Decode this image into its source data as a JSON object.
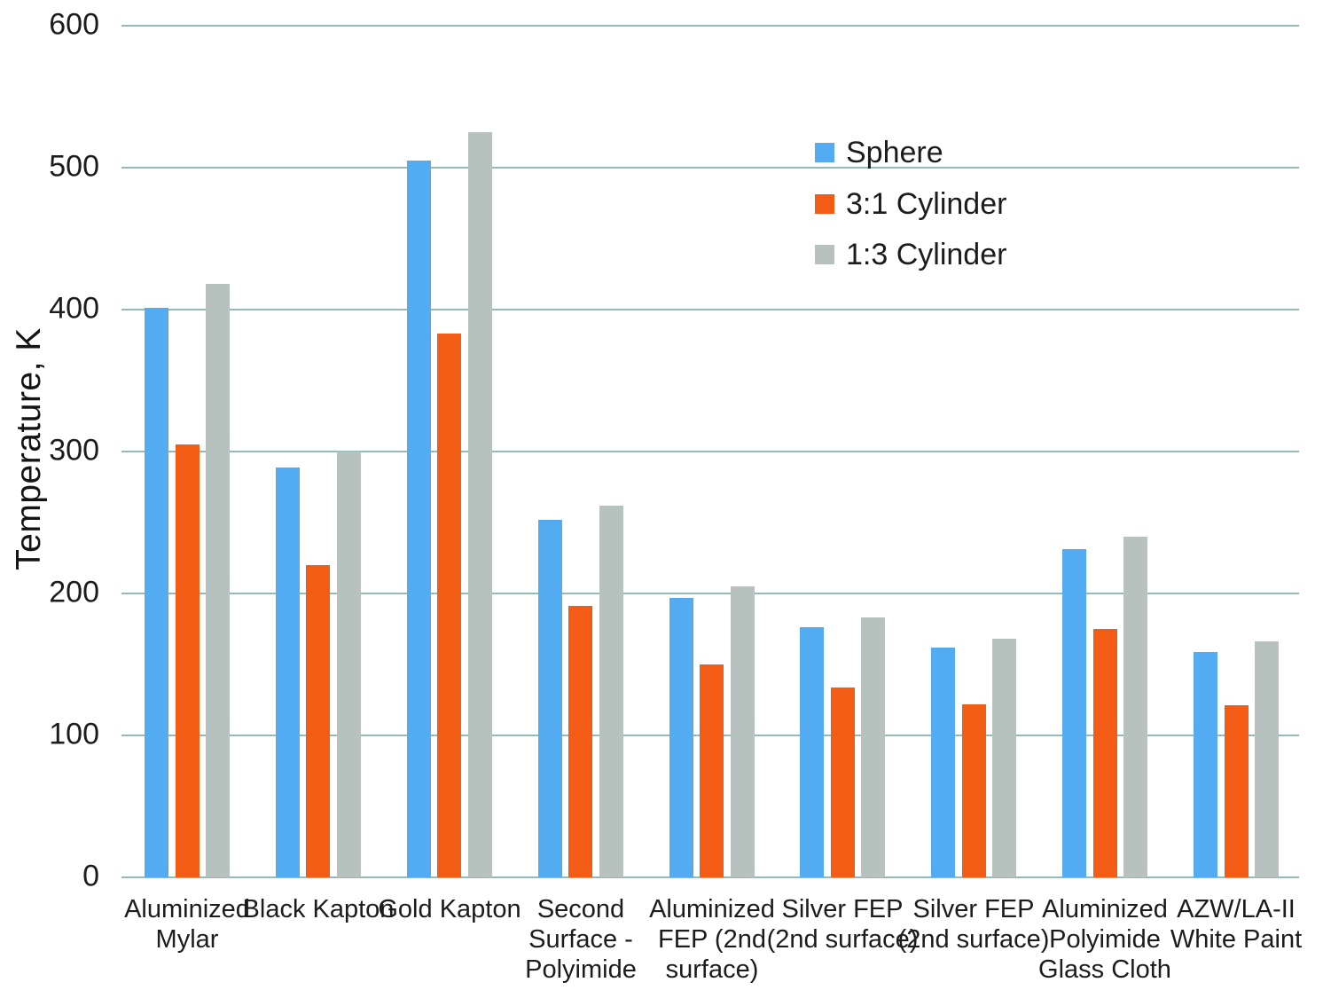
{
  "chart_data": {
    "type": "bar",
    "title": "",
    "xlabel": "",
    "ylabel": "Temperature, K",
    "ylim": [
      0,
      600
    ],
    "y_tick_step": 100,
    "y_tick_labels": [
      "0",
      "100",
      "200",
      "300",
      "400",
      "500",
      "600"
    ],
    "grid": "horizontal",
    "legend_position": "inside-top, right of center",
    "categories": [
      {
        "label": "Aluminized Mylar",
        "lines": [
          "Aluminized",
          "Mylar"
        ]
      },
      {
        "label": "Black Kapton",
        "lines": [
          "Black Kapton"
        ]
      },
      {
        "label": "Gold Kapton",
        "lines": [
          "Gold Kapton"
        ]
      },
      {
        "label": "Second Surface - Polyimide",
        "lines": [
          "Second",
          "Surface -",
          "Polyimide"
        ]
      },
      {
        "label": "Aluminized FEP (2nd surface)",
        "lines": [
          "Aluminized",
          "FEP (2nd",
          "surface)"
        ]
      },
      {
        "label": "Silver FEP (2nd surface)",
        "lines": [
          "Silver FEP",
          "(2nd surface)"
        ]
      },
      {
        "label": "Silver FEP (2nd surface)",
        "lines": [
          "Silver FEP",
          "(2nd surface)"
        ]
      },
      {
        "label": "Aluminized Polyimide Glass Cloth",
        "lines": [
          "Aluminized",
          "Polyimide",
          "Glass Cloth"
        ]
      },
      {
        "label": "AZW/LA-II White Paint",
        "lines": [
          "AZW/LA-II",
          "White Paint"
        ]
      }
    ],
    "series": [
      {
        "name": "Sphere",
        "color": "#53ACF2",
        "values": [
          401,
          289,
          505,
          252,
          197,
          176,
          162,
          231,
          159
        ]
      },
      {
        "name": "3:1 Cylinder",
        "color": "#F25C14",
        "values": [
          305,
          220,
          383,
          191,
          150,
          134,
          122,
          175,
          121
        ]
      },
      {
        "name": "1:3 Cylinder",
        "color": "#B7C1BE",
        "values": [
          418,
          300,
          525,
          262,
          205,
          183,
          168,
          240,
          166
        ]
      }
    ]
  },
  "style": {
    "grid_color": "#93B9BA",
    "text_color": "#1C1C1C",
    "background": "#FFFFFF"
  }
}
